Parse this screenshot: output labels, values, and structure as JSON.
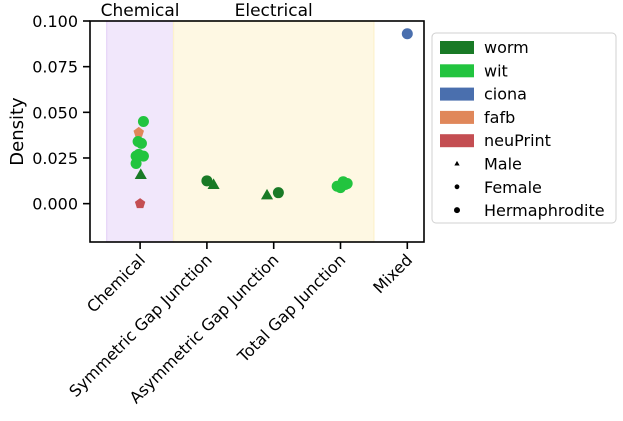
{
  "chart_data": {
    "type": "scatter",
    "title": "",
    "xlabel": "",
    "ylabel": "Density",
    "ylim": [
      -0.021,
      0.1
    ],
    "yticks": [
      0.0,
      0.025,
      0.05,
      0.075,
      0.1
    ],
    "ytick_labels": [
      "0.000",
      "0.025",
      "0.050",
      "0.075",
      "0.100"
    ],
    "categories": [
      "Chemical",
      "Symmetric Gap Junction",
      "Asymmetric Gap Junction",
      "Total Gap Junction",
      "Mixed"
    ],
    "grid": false,
    "legend_position": "outside-right",
    "regions": [
      {
        "label": "Chemical",
        "from": -0.5,
        "to": 0.5,
        "color": "#e6d4f7"
      },
      {
        "label": "Electrical",
        "from": 0.5,
        "to": 3.5,
        "color": "#fdf2cc"
      }
    ],
    "legend": [
      {
        "label": "worm",
        "kind": "patch",
        "color": "#197a26"
      },
      {
        "label": "wit",
        "kind": "patch",
        "color": "#22c43f"
      },
      {
        "label": "ciona",
        "kind": "patch",
        "color": "#4a6fae"
      },
      {
        "label": "fafb",
        "kind": "patch",
        "color": "#e0875a"
      },
      {
        "label": "neuPrint",
        "kind": "patch",
        "color": "#c44e52"
      },
      {
        "label": "Male",
        "kind": "marker",
        "marker": "triangle"
      },
      {
        "label": "Female",
        "kind": "marker",
        "marker": "pentagon"
      },
      {
        "label": "Hermaphrodite",
        "kind": "marker",
        "marker": "circle"
      }
    ],
    "points": [
      {
        "category": "Chemical",
        "x": 0.05,
        "y": 0.045,
        "dataset": "wit",
        "sex": "Hermaphrodite"
      },
      {
        "category": "Chemical",
        "x": -0.02,
        "y": 0.039,
        "dataset": "fafb",
        "sex": "Female"
      },
      {
        "category": "Chemical",
        "x": -0.03,
        "y": 0.034,
        "dataset": "wit",
        "sex": "Hermaphrodite"
      },
      {
        "category": "Chemical",
        "x": 0.02,
        "y": 0.033,
        "dataset": "wit",
        "sex": "Hermaphrodite"
      },
      {
        "category": "Chemical",
        "x": 0.05,
        "y": 0.026,
        "dataset": "wit",
        "sex": "Hermaphrodite"
      },
      {
        "category": "Chemical",
        "x": -0.06,
        "y": 0.026,
        "dataset": "wit",
        "sex": "Hermaphrodite"
      },
      {
        "category": "Chemical",
        "x": -0.02,
        "y": 0.027,
        "dataset": "wit",
        "sex": "Hermaphrodite"
      },
      {
        "category": "Chemical",
        "x": -0.06,
        "y": 0.022,
        "dataset": "wit",
        "sex": "Hermaphrodite"
      },
      {
        "category": "Chemical",
        "x": 0.01,
        "y": 0.016,
        "dataset": "worm",
        "sex": "Male"
      },
      {
        "category": "Chemical",
        "x": 0.0,
        "y": 0.0,
        "dataset": "neuPrint",
        "sex": "Female"
      },
      {
        "category": "Symmetric Gap Junction",
        "x": 1.0,
        "y": 0.0125,
        "dataset": "worm",
        "sex": "Hermaphrodite"
      },
      {
        "category": "Symmetric Gap Junction",
        "x": 1.1,
        "y": 0.0105,
        "dataset": "worm",
        "sex": "Male"
      },
      {
        "category": "Asymmetric Gap Junction",
        "x": 1.9,
        "y": 0.0048,
        "dataset": "worm",
        "sex": "Male"
      },
      {
        "category": "Asymmetric Gap Junction",
        "x": 2.07,
        "y": 0.006,
        "dataset": "worm",
        "sex": "Hermaphrodite"
      },
      {
        "category": "Total Gap Junction",
        "x": 2.95,
        "y": 0.0095,
        "dataset": "wit",
        "sex": "Hermaphrodite"
      },
      {
        "category": "Total Gap Junction",
        "x": 3.0,
        "y": 0.0088,
        "dataset": "wit",
        "sex": "Hermaphrodite"
      },
      {
        "category": "Total Gap Junction",
        "x": 3.04,
        "y": 0.012,
        "dataset": "wit",
        "sex": "Hermaphrodite"
      },
      {
        "category": "Total Gap Junction",
        "x": 3.07,
        "y": 0.0105,
        "dataset": "wit",
        "sex": "Hermaphrodite"
      },
      {
        "category": "Total Gap Junction",
        "x": 3.1,
        "y": 0.011,
        "dataset": "wit",
        "sex": "Hermaphrodite"
      },
      {
        "category": "Mixed",
        "x": 4.0,
        "y": 0.093,
        "dataset": "ciona",
        "sex": "Hermaphrodite"
      }
    ]
  }
}
